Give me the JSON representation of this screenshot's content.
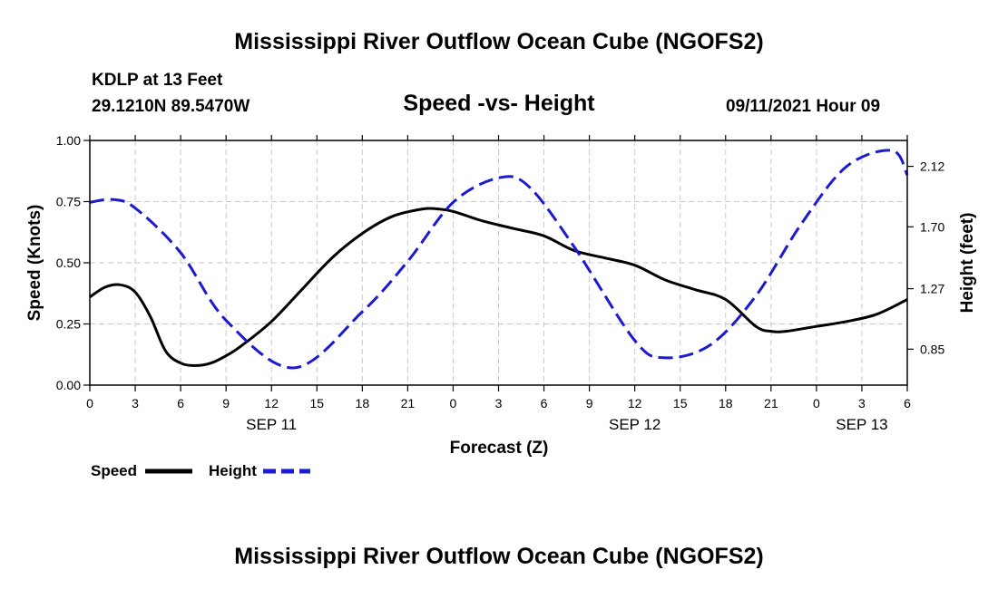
{
  "header": {
    "title_top": "Mississippi River Outflow Ocean Cube (NGOFS2)",
    "title_bottom": "Mississippi River Outflow Ocean Cube (NGOFS2)",
    "station": "KDLP at 13 Feet",
    "location": "29.1210N  89.5470W",
    "subtitle": "Speed -vs- Height",
    "datetime": "09/11/2021 Hour 09"
  },
  "colors": {
    "speed": "#000000",
    "height": "#1a1ad0",
    "grid": "#c8c8c8"
  },
  "chart_data": {
    "type": "line",
    "title": "Speed -vs- Height",
    "xlabel": "Forecast (Z)",
    "ylabel": "Speed (Knots)",
    "y2label": "Height (feet)",
    "xlim": [
      0,
      54
    ],
    "ylim": [
      0,
      1
    ],
    "y2lim": [
      0.6,
      2.3
    ],
    "x_ticks": [
      0,
      3,
      6,
      9,
      12,
      15,
      18,
      21,
      24,
      27,
      30,
      33,
      36,
      39,
      42,
      45,
      48,
      51,
      54
    ],
    "x_tick_labels": [
      "0",
      "3",
      "6",
      "9",
      "12",
      "15",
      "18",
      "21",
      "0",
      "3",
      "6",
      "9",
      "12",
      "15",
      "18",
      "21",
      "0",
      "3",
      "6"
    ],
    "date_labels": [
      {
        "x": 12,
        "label": "SEP 11"
      },
      {
        "x": 36,
        "label": "SEP 12"
      },
      {
        "x": 51,
        "label": "SEP 13"
      }
    ],
    "y_ticks": [
      0,
      0.25,
      0.5,
      0.75,
      1.0
    ],
    "y_tick_labels": [
      "0.00",
      "0.25",
      "0.50",
      "0.75",
      "1.00"
    ],
    "y2_ticks": [
      0.85,
      1.27,
      1.7,
      2.12
    ],
    "y2_tick_labels": [
      "0.85",
      "1.27",
      "1.70",
      "2.12"
    ],
    "grid": true,
    "legend_position": "bottom-left",
    "series": [
      {
        "name": "Speed",
        "axis": "left",
        "style": "solid",
        "x": [
          0,
          1,
          2,
          3,
          4,
          5,
          6,
          7,
          8,
          9,
          10,
          12,
          14,
          16,
          18,
          20,
          22,
          23,
          24,
          26,
          28,
          30,
          32,
          34,
          36,
          38,
          40,
          42,
          44,
          45,
          46,
          48,
          50,
          52,
          54
        ],
        "values": [
          0.36,
          0.4,
          0.41,
          0.38,
          0.28,
          0.14,
          0.09,
          0.08,
          0.09,
          0.12,
          0.16,
          0.26,
          0.39,
          0.52,
          0.62,
          0.69,
          0.72,
          0.72,
          0.71,
          0.67,
          0.64,
          0.61,
          0.55,
          0.52,
          0.49,
          0.43,
          0.39,
          0.35,
          0.24,
          0.22,
          0.22,
          0.24,
          0.26,
          0.29,
          0.35
        ]
      },
      {
        "name": "Height",
        "axis": "right",
        "style": "dashed",
        "x": [
          0,
          1.5,
          3,
          6,
          9,
          13.5,
          18,
          21,
          24,
          27,
          29,
          32,
          36,
          38,
          41,
          44,
          47,
          50,
          53,
          54
        ],
        "values": [
          1.87,
          1.89,
          1.83,
          1.52,
          1.05,
          0.72,
          1.11,
          1.46,
          1.87,
          2.04,
          1.98,
          1.56,
          0.91,
          0.79,
          0.88,
          1.22,
          1.72,
          2.12,
          2.23,
          2.06
        ]
      }
    ]
  }
}
